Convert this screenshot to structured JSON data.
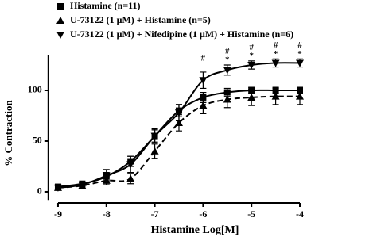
{
  "chart_data": {
    "type": "line",
    "x_label": "Histamine Log[M]",
    "y_label": "% Contraction",
    "x": [
      -9,
      -8.5,
      -8,
      -7.5,
      -7,
      -6.5,
      -6,
      -5.5,
      -5,
      -4.5,
      -4
    ],
    "series": [
      {
        "name": "Histamine (n=11)",
        "color": "#000000",
        "marker": "square",
        "line_style": "solid",
        "values": [
          5,
          8,
          15,
          30,
          55,
          80,
          93,
          98,
          100,
          100,
          100
        ],
        "errors": [
          2,
          2,
          4,
          5,
          6,
          6,
          5,
          4,
          3,
          3,
          3
        ]
      },
      {
        "name": "U-73122 (1 μM) + Histamine (n=5)",
        "color": "#000000",
        "marker": "triangle-up",
        "line_style": "dashed",
        "values": [
          4,
          6,
          11,
          13,
          40,
          68,
          85,
          91,
          93,
          94,
          94
        ],
        "errors": [
          2,
          2,
          4,
          5,
          7,
          8,
          8,
          8,
          8,
          8,
          8
        ]
      },
      {
        "name": "U-73122 (1 μM) + Nifedipine (1 μM) + Histamine (n=6)",
        "color": "#000000",
        "marker": "triangle-down",
        "line_style": "solid",
        "values": [
          4,
          7,
          16,
          27,
          55,
          78,
          110,
          120,
          125,
          127,
          127
        ],
        "errors": [
          2,
          2,
          6,
          8,
          7,
          8,
          8,
          5,
          4,
          4,
          4
        ]
      }
    ],
    "annotations": [
      {
        "x": -6,
        "text": "#"
      },
      {
        "x": -5.5,
        "text": "#"
      },
      {
        "x": -5,
        "text": "#"
      },
      {
        "x": -4.5,
        "text": "#"
      },
      {
        "x": -4,
        "text": "#"
      },
      {
        "x": -5.5,
        "text": "*"
      },
      {
        "x": -5,
        "text": "*"
      },
      {
        "x": -4.5,
        "text": "*"
      },
      {
        "x": -4,
        "text": "*"
      }
    ],
    "xlim": [
      -9.2,
      -4
    ],
    "xticks": [
      -9,
      -8,
      -7,
      -6,
      -5,
      -4
    ],
    "ylim": [
      -8,
      135
    ],
    "yticks": [
      0,
      50,
      100
    ]
  }
}
